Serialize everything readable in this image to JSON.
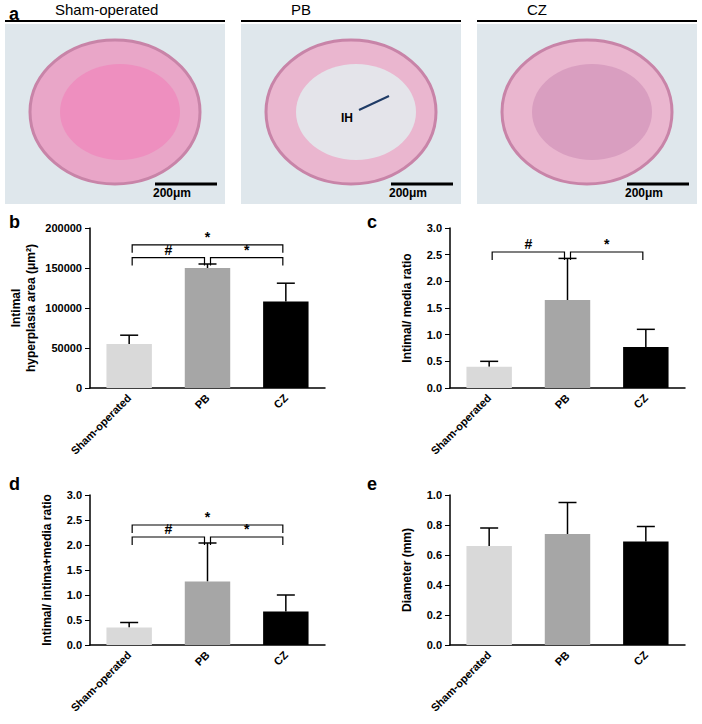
{
  "images": {
    "title": "a",
    "annotation": "IH",
    "panels": [
      {
        "label": "Sham-operated",
        "scale_bar": "200μm"
      },
      {
        "label": "PB",
        "scale_bar": "200μm"
      },
      {
        "label": "CZ",
        "scale_bar": "200μm"
      }
    ]
  },
  "chart_data": [
    {
      "type": "bar",
      "title": "b",
      "y_label": "Intimal\nhyperplasia area (μm²)",
      "categories": [
        "Sham-operated",
        "PB",
        "CZ"
      ],
      "values": [
        55000,
        150000,
        108000
      ],
      "errors": [
        11000,
        5000,
        23000
      ],
      "colors": [
        "#d9d9d9",
        "#a6a6a6",
        "#000000"
      ],
      "ylim": [
        0,
        200000
      ],
      "yticks": [
        0,
        50000,
        100000,
        150000,
        200000
      ],
      "grid": false,
      "annotations": [
        {
          "between": [
            "Sham-operated",
            "PB"
          ],
          "label": "#"
        },
        {
          "between": [
            "PB",
            "CZ"
          ],
          "label": "*"
        },
        {
          "between": [
            "Sham-operated",
            "CZ"
          ],
          "label": "*"
        }
      ]
    },
    {
      "type": "bar",
      "title": "c",
      "y_label": "Intimal/ media ratio",
      "categories": [
        "Sham-operated",
        "PB",
        "CZ"
      ],
      "values": [
        0.4,
        1.65,
        0.77
      ],
      "errors": [
        0.1,
        0.78,
        0.33
      ],
      "colors": [
        "#d9d9d9",
        "#a6a6a6",
        "#000000"
      ],
      "ylim": [
        0,
        3
      ],
      "yticks": [
        {
          "value": 0,
          "label": "0.0"
        },
        {
          "value": 0.5,
          "label": "0.5"
        },
        {
          "value": 1,
          "label": "1.0"
        },
        {
          "value": 1.5,
          "label": "1.5"
        },
        {
          "value": 2,
          "label": "2.0"
        },
        {
          "value": 2.5,
          "label": "2.5"
        },
        {
          "value": 3,
          "label": "3.0"
        }
      ],
      "grid": false,
      "annotations": [
        {
          "between": [
            "Sham-operated",
            "PB"
          ],
          "label": "#"
        },
        {
          "between": [
            "PB",
            "CZ"
          ],
          "label": "*"
        }
      ]
    },
    {
      "type": "bar",
      "title": "d",
      "y_label": "Intimal/ intima+media ratio",
      "categories": [
        "Sham-operated",
        "PB",
        "CZ"
      ],
      "values": [
        0.35,
        1.27,
        0.67
      ],
      "errors": [
        0.1,
        0.77,
        0.33
      ],
      "colors": [
        "#d9d9d9",
        "#a6a6a6",
        "#000000"
      ],
      "ylim": [
        0,
        3
      ],
      "yticks": [
        {
          "value": 0,
          "label": "0.0"
        },
        {
          "value": 0.5,
          "label": "0.5"
        },
        {
          "value": 1,
          "label": "1.0"
        },
        {
          "value": 1.5,
          "label": "1.5"
        },
        {
          "value": 2,
          "label": "2.0"
        },
        {
          "value": 2.5,
          "label": "2.5"
        },
        {
          "value": 3,
          "label": "3.0"
        }
      ],
      "grid": false,
      "annotations": [
        {
          "between": [
            "Sham-operated",
            "PB"
          ],
          "label": "#"
        },
        {
          "between": [
            "PB",
            "CZ"
          ],
          "label": "*"
        },
        {
          "between": [
            "Sham-operated",
            "CZ"
          ],
          "label": "*"
        }
      ]
    },
    {
      "type": "bar",
      "title": "e",
      "y_label": "Diameter (mm)",
      "categories": [
        "Sham-operated",
        "PB",
        "CZ"
      ],
      "values": [
        0.66,
        0.74,
        0.69
      ],
      "errors": [
        0.12,
        0.21,
        0.1
      ],
      "colors": [
        "#d9d9d9",
        "#a6a6a6",
        "#000000"
      ],
      "ylim": [
        0,
        1
      ],
      "yticks": [
        {
          "value": 0,
          "label": "0.0"
        },
        {
          "value": 0.2,
          "label": "0.2"
        },
        {
          "value": 0.4,
          "label": "0.4"
        },
        {
          "value": 0.6,
          "label": "0.6"
        },
        {
          "value": 0.8,
          "label": "0.8"
        },
        {
          "value": 1,
          "label": "1.0"
        }
      ],
      "grid": false,
      "annotations": []
    }
  ]
}
